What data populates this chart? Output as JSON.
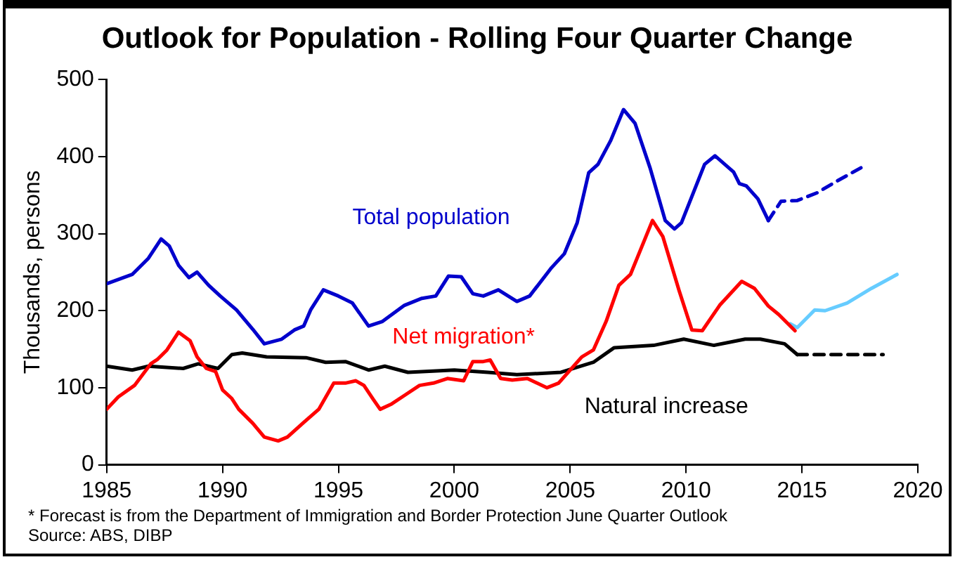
{
  "chart_data": {
    "type": "line",
    "title": "Outlook for Population - Rolling Four Quarter Change",
    "ylabel": "Thousands, persons",
    "xlim": [
      1985,
      2020
    ],
    "xticks": [
      1985,
      1990,
      1995,
      2000,
      2005,
      2010,
      2015,
      2020
    ],
    "ylim": [
      0,
      500
    ],
    "yticks": [
      0,
      100,
      200,
      300,
      400,
      500
    ],
    "grid": false,
    "legend": false,
    "marker": "none",
    "annotations": [
      "* Forecast is from the Department of Immigration and Border Protection June Quarter Outlook",
      "Source: ABS, DIBP"
    ],
    "series": [
      {
        "name": "Total population",
        "color": "#0000cc",
        "line_style": "solid",
        "x": [
          1985,
          1986.1,
          1986.8,
          1987.35,
          1987.7,
          1988.1,
          1988.55,
          1988.9,
          1989.4,
          1989.9,
          1990.6,
          1991.3,
          1991.8,
          1992.55,
          1993.1,
          1993.5,
          1993.8,
          1994.35,
          1995.0,
          1995.6,
          1996.3,
          1996.9,
          1997.85,
          1998.6,
          1999.2,
          1999.75,
          2000.3,
          2000.8,
          2001.25,
          2001.9,
          2002.7,
          2003.25,
          2004.2,
          2004.75,
          2005.3,
          2005.8,
          2006.2,
          2006.75,
          2007.3,
          2007.8,
          2008.45,
          2009.1,
          2009.5,
          2009.8,
          2010.8,
          2011.25,
          2012.05,
          2012.3,
          2012.6,
          2013.1,
          2013.55
        ],
        "values": [
          235,
          247,
          268,
          293,
          284,
          259,
          243,
          250,
          233,
          219,
          201,
          176,
          157,
          163,
          175,
          180,
          201,
          227,
          219,
          210,
          180,
          186,
          207,
          216,
          219,
          245,
          244,
          222,
          219,
          227,
          212,
          219,
          256,
          274,
          314,
          379,
          390,
          421,
          461,
          443,
          385,
          317,
          306,
          314,
          390,
          401,
          380,
          365,
          362,
          345,
          317
        ]
      },
      {
        "color": "#0000cc",
        "line_style": "dashed",
        "x": [
          2013.55,
          2014.1,
          2014.8,
          2015.65,
          2016.5,
          2017.7
        ],
        "values": [
          317,
          342,
          343,
          353,
          368,
          388
        ]
      },
      {
        "name": "Net migration*",
        "color": "#ff0000",
        "line_style": "solid",
        "x": [
          1985,
          1985.5,
          1986.2,
          1986.9,
          1987.2,
          1987.6,
          1988.1,
          1988.6,
          1988.9,
          1989.3,
          1989.7,
          1990.0,
          1990.4,
          1990.7,
          1991.3,
          1991.8,
          1992.4,
          1992.8,
          1993.5,
          1994.15,
          1994.8,
          1995.3,
          1995.75,
          1996.1,
          1996.5,
          1996.8,
          1997.3,
          1997.9,
          1998.5,
          1999.1,
          1999.7,
          2000.4,
          2000.8,
          2001.25,
          2001.55,
          2002.0,
          2002.5,
          2003.15,
          2004.0,
          2004.5,
          2005.5,
          2006.0,
          2006.55,
          2007.1,
          2007.6,
          2008.55,
          2009.0,
          2009.7,
          2010.25,
          2010.7,
          2011.45,
          2012.4,
          2012.95,
          2013.55,
          2014.0,
          2014.7
        ],
        "values": [
          72,
          88,
          103,
          131,
          137,
          149,
          172,
          161,
          140,
          125,
          121,
          97,
          86,
          72,
          54,
          36,
          31,
          36,
          55,
          72,
          106,
          106,
          109,
          103,
          85,
          72,
          79,
          91,
          103,
          106,
          112,
          109,
          134,
          134,
          136,
          112,
          110,
          112,
          100,
          106,
          140,
          149,
          186,
          233,
          247,
          317,
          296,
          226,
          175,
          174,
          207,
          238,
          229,
          206,
          195,
          174
        ]
      },
      {
        "color": "#66ccff",
        "line_style": "solid",
        "x": [
          2014.5,
          2014.8,
          2015.55,
          2016.0,
          2016.95,
          2018.0,
          2019.1
        ],
        "values": [
          183,
          178,
          201,
          200,
          210,
          229,
          247
        ]
      },
      {
        "name": "Natural increase",
        "color": "#000000",
        "line_style": "solid",
        "x": [
          1985,
          1986.1,
          1986.8,
          1988.3,
          1988.95,
          1989.8,
          1990.4,
          1990.85,
          1991.9,
          1993.6,
          1994.45,
          1995.3,
          1996.3,
          1997.0,
          1998.0,
          2000.0,
          2001.45,
          2002.7,
          2004.6,
          2006.0,
          2006.9,
          2008.6,
          2009.9,
          2011.2,
          2012.55,
          2013.2,
          2014.25,
          2014.8
        ],
        "values": [
          128,
          123,
          128,
          125,
          131,
          125,
          143,
          145,
          140,
          139,
          133,
          134,
          123,
          128,
          120,
          123,
          120,
          117,
          120,
          133,
          152,
          155,
          163,
          155,
          163,
          163,
          157,
          143
        ]
      },
      {
        "color": "#000000",
        "line_style": "dashed",
        "x": [
          2014.8,
          2018.5
        ],
        "values": [
          143,
          143
        ]
      }
    ]
  }
}
